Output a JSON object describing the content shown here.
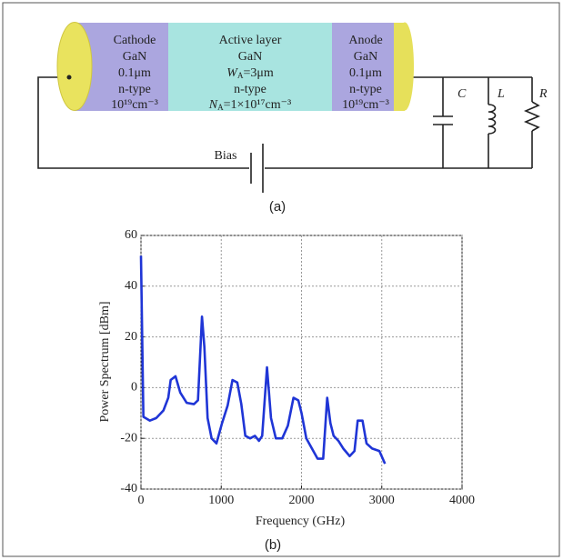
{
  "diagram": {
    "cathode": {
      "name": "Cathode",
      "material": "GaN",
      "thickness": "0.1μm",
      "type": "n-type",
      "doping": "10¹⁹cm⁻³"
    },
    "active": {
      "name": "Active layer",
      "material": "GaN",
      "width": {
        "symbol": "W",
        "subscript": "A",
        "rest": "=3μm"
      },
      "type": "n-type",
      "doping": {
        "symbol": "N",
        "subscript": "A",
        "rest": "=1×10¹⁷cm⁻³"
      }
    },
    "anode": {
      "name": "Anode",
      "material": "GaN",
      "thickness": "0.1μm",
      "type": "n-type",
      "doping": "10¹⁹cm⁻³"
    },
    "bias": "Bias",
    "capacitor": "C",
    "inductor": "L",
    "resistor": "R",
    "caption": "(a)"
  },
  "chart_data": {
    "type": "line",
    "caption": "(b)",
    "x_label": "Frequency (GHz)",
    "y_label": "Power Spectrum [dBm]",
    "xlim": [
      0,
      4000
    ],
    "ylim": [
      -40,
      60
    ],
    "xticks": [
      0,
      1000,
      2000,
      3000,
      4000
    ],
    "yticks": [
      -40,
      -20,
      0,
      20,
      40,
      60
    ],
    "grid": true,
    "series": [
      {
        "color": "#1f35d6",
        "x": [
          0,
          30,
          110,
          190,
          280,
          340,
          370,
          430,
          490,
          570,
          660,
          710,
          760,
          790,
          830,
          880,
          940,
          1010,
          1080,
          1140,
          1200,
          1250,
          1300,
          1360,
          1420,
          1470,
          1510,
          1570,
          1620,
          1680,
          1760,
          1830,
          1900,
          1960,
          2000,
          2060,
          2130,
          2200,
          2270,
          2320,
          2360,
          2400,
          2460,
          2520,
          2600,
          2660,
          2700,
          2760,
          2810,
          2880,
          2970,
          3040
        ],
        "values": [
          52,
          -11.5,
          -13,
          -12,
          -9,
          -4,
          3,
          4.5,
          -2,
          -6,
          -6.5,
          -5,
          28,
          16,
          -12,
          -20,
          -22,
          -14,
          -7,
          3,
          2,
          -6.5,
          -19,
          -20,
          -19,
          -21,
          -19,
          8,
          -12,
          -20,
          -20,
          -15,
          -4,
          -5,
          -10,
          -20,
          -24,
          -28,
          -28,
          -4,
          -14,
          -19,
          -21,
          -24,
          -27,
          -25,
          -13,
          -13,
          -22,
          -24,
          -25,
          -30
        ]
      }
    ]
  }
}
